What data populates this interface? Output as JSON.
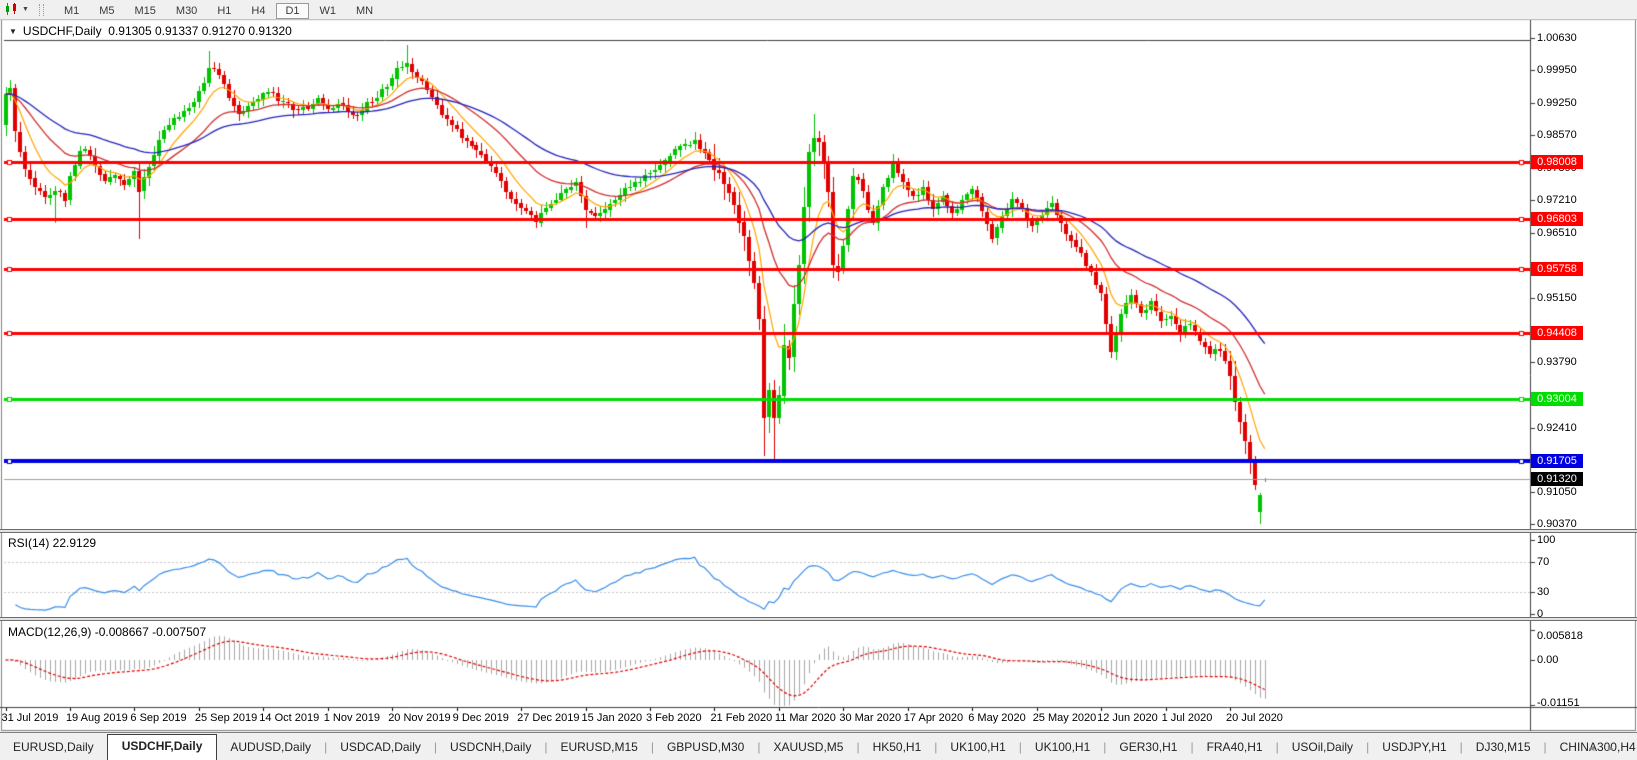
{
  "toolbar": {
    "timeframe_buttons": [
      "M1",
      "M5",
      "M15",
      "M30",
      "H1",
      "H4",
      "D1",
      "W1",
      "MN"
    ],
    "active_timeframe": "D1"
  },
  "chart": {
    "title": {
      "symbol": "USDCHF,Daily",
      "ohlc": "0.91305 0.91337 0.91270 0.91320"
    }
  },
  "rsi": {
    "label": "RSI(14) 22.9129",
    "axis_labels": [
      "100",
      "70",
      "30",
      "0"
    ],
    "axis_values": [
      100,
      70,
      30,
      0
    ],
    "level_lines": [
      70,
      30
    ],
    "line_color": "#3B8FE8"
  },
  "macd": {
    "label": "MACD(12,26,9) -0.008667 -0.007507",
    "axis_labels": [
      "0.005818",
      "0.00",
      "-0.01151"
    ],
    "histogram_color": "#A8A8A8",
    "signal_color": "#E00000"
  },
  "tab_bar": {
    "scroll_left_icon": "◄",
    "scroll_right_icon": "►",
    "tabs": [
      {
        "label": "EURUSD,Daily",
        "active": false
      },
      {
        "label": "USDCHF,Daily",
        "active": true
      },
      {
        "label": "AUDUSD,Daily",
        "active": false
      },
      {
        "label": "USDCAD,Daily",
        "active": false
      },
      {
        "label": "USDCNH,Daily",
        "active": false
      },
      {
        "label": "EURUSD,M15",
        "active": false
      },
      {
        "label": "GBPUSD,M30",
        "active": false
      },
      {
        "label": "XAUUSD,M5",
        "active": false
      },
      {
        "label": "HK50,H1",
        "active": false
      },
      {
        "label": "UK100,H1",
        "active": false
      },
      {
        "label": "UK100,H1",
        "active": false
      },
      {
        "label": "GER30,H1",
        "active": false
      },
      {
        "label": "FRA40,H1",
        "active": false
      },
      {
        "label": "USOil,Daily",
        "active": false
      },
      {
        "label": "USDJPY,H1",
        "active": false
      },
      {
        "label": "DJ30,M15",
        "active": false
      },
      {
        "label": "CHINA300,H4",
        "active": false
      }
    ]
  },
  "chart_data": {
    "type": "candlestick",
    "symbol": "USDCHF",
    "timeframe": "Daily",
    "ohlc_current": {
      "open": 0.91305,
      "high": 0.91337,
      "low": 0.9127,
      "close": 0.9132
    },
    "num_candles": 255,
    "candles_per_date_tick": 13,
    "colors": {
      "up": "#00C400",
      "down": "#E00000",
      "current_price_line": "#A0A0A0"
    },
    "moving_averages": [
      {
        "name": "fast",
        "period": 8,
        "color": "#FFA500",
        "width": 1.2
      },
      {
        "name": "medium",
        "period": 21,
        "color": "#D03030",
        "width": 1.3
      },
      {
        "name": "slow",
        "period": 44,
        "color": "#2424BB",
        "width": 1.3
      }
    ],
    "horizontal_lines": [
      {
        "label": "0.98008",
        "price": 0.98008,
        "color": "#FF0000",
        "width": 3
      },
      {
        "label": "0.96803",
        "price": 0.96803,
        "color": "#FF0000",
        "width": 3
      },
      {
        "label": "0.95758",
        "price": 0.95758,
        "color": "#FF0000",
        "width": 3
      },
      {
        "label": "0.94408",
        "price": 0.94408,
        "color": "#FF0000",
        "width": 3
      },
      {
        "label": "0.93004",
        "price": 0.93004,
        "color": "#00DD00",
        "width": 3
      },
      {
        "label": "0.91705",
        "price": 0.91705,
        "color": "#0000E0",
        "width": 4
      }
    ],
    "current_price": {
      "label": "0.91320",
      "price": 0.9132
    },
    "price_axis_ticks": [
      {
        "label": "1.00630",
        "price": 1.0063
      },
      {
        "label": "0.99950",
        "price": 0.9995
      },
      {
        "label": "0.99250",
        "price": 0.9925
      },
      {
        "label": "0.98570",
        "price": 0.9857
      },
      {
        "label": "0.97890",
        "price": 0.9789
      },
      {
        "label": "0.97210",
        "price": 0.9721
      },
      {
        "label": "0.96510",
        "price": 0.9651
      },
      {
        "label": "0.95150",
        "price": 0.9515
      },
      {
        "label": "0.93790",
        "price": 0.9379
      },
      {
        "label": "0.92410",
        "price": 0.9241
      },
      {
        "label": "0.91050",
        "price": 0.9105
      },
      {
        "label": "0.90370",
        "price": 0.9037
      }
    ],
    "date_ticks": [
      "31 Jul 2019",
      "19 Aug 2019",
      "6 Sep 2019",
      "25 Sep 2019",
      "14 Oct 2019",
      "1 Nov 2019",
      "20 Nov 2019",
      "9 Dec 2019",
      "27 Dec 2019",
      "15 Jan 2020",
      "3 Feb 2020",
      "21 Feb 2020",
      "11 Mar 2020",
      "30 Mar 2020",
      "17 Apr 2020",
      "6 May 2020",
      "25 May 2020",
      "12 Jun 2020",
      "1 Jul 2020",
      "20 Jul 2020"
    ],
    "close_anchors": [
      [
        0,
        0.994
      ],
      [
        1,
        0.9952
      ],
      [
        2,
        0.987
      ],
      [
        3,
        0.982
      ],
      [
        4,
        0.9788
      ],
      [
        6,
        0.9752
      ],
      [
        8,
        0.9726
      ],
      [
        10,
        0.9742
      ],
      [
        12,
        0.9722
      ],
      [
        13,
        0.9768
      ],
      [
        15,
        0.9822
      ],
      [
        16,
        0.983
      ],
      [
        18,
        0.9788
      ],
      [
        20,
        0.9758
      ],
      [
        22,
        0.9772
      ],
      [
        24,
        0.9752
      ],
      [
        26,
        0.9788
      ],
      [
        27,
        0.9742
      ],
      [
        28,
        0.9772
      ],
      [
        30,
        0.982
      ],
      [
        32,
        0.9868
      ],
      [
        34,
        0.9892
      ],
      [
        36,
        0.9906
      ],
      [
        38,
        0.9926
      ],
      [
        40,
        0.9972
      ],
      [
        41,
        0.9998
      ],
      [
        43,
        0.9988
      ],
      [
        45,
        0.994
      ],
      [
        47,
        0.9902
      ],
      [
        49,
        0.9918
      ],
      [
        51,
        0.9936
      ],
      [
        53,
        0.9952
      ],
      [
        55,
        0.9932
      ],
      [
        57,
        0.9922
      ],
      [
        59,
        0.9904
      ],
      [
        61,
        0.9918
      ],
      [
        63,
        0.9936
      ],
      [
        65,
        0.9908
      ],
      [
        67,
        0.9924
      ],
      [
        69,
        0.9908
      ],
      [
        71,
        0.9898
      ],
      [
        73,
        0.9922
      ],
      [
        75,
        0.994
      ],
      [
        77,
        0.9962
      ],
      [
        79,
        0.9996
      ],
      [
        81,
        1.0006
      ],
      [
        83,
        0.9982
      ],
      [
        85,
        0.995
      ],
      [
        87,
        0.992
      ],
      [
        89,
        0.9892
      ],
      [
        91,
        0.9868
      ],
      [
        93,
        0.9846
      ],
      [
        95,
        0.9824
      ],
      [
        97,
        0.9808
      ],
      [
        99,
        0.9778
      ],
      [
        101,
        0.9742
      ],
      [
        103,
        0.9712
      ],
      [
        105,
        0.9692
      ],
      [
        107,
        0.9678
      ],
      [
        109,
        0.9704
      ],
      [
        111,
        0.9722
      ],
      [
        113,
        0.9742
      ],
      [
        115,
        0.9756
      ],
      [
        117,
        0.97
      ],
      [
        119,
        0.9686
      ],
      [
        121,
        0.9706
      ],
      [
        123,
        0.9722
      ],
      [
        125,
        0.9742
      ],
      [
        127,
        0.9756
      ],
      [
        129,
        0.9772
      ],
      [
        131,
        0.9788
      ],
      [
        133,
        0.9806
      ],
      [
        135,
        0.9824
      ],
      [
        137,
        0.9838
      ],
      [
        139,
        0.9844
      ],
      [
        141,
        0.9818
      ],
      [
        143,
        0.9786
      ],
      [
        145,
        0.9756
      ],
      [
        147,
        0.97
      ],
      [
        149,
        0.964
      ],
      [
        151,
        0.9556
      ],
      [
        152,
        0.947
      ],
      [
        153,
        0.927
      ],
      [
        154,
        0.933
      ],
      [
        155,
        0.9252
      ],
      [
        156,
        0.9312
      ],
      [
        157,
        0.9424
      ],
      [
        158,
        0.9388
      ],
      [
        159,
        0.9512
      ],
      [
        160,
        0.9582
      ],
      [
        161,
        0.9702
      ],
      [
        162,
        0.9822
      ],
      [
        163,
        0.9858
      ],
      [
        164,
        0.9838
      ],
      [
        165,
        0.9792
      ],
      [
        166,
        0.9726
      ],
      [
        167,
        0.9592
      ],
      [
        168,
        0.9566
      ],
      [
        169,
        0.962
      ],
      [
        171,
        0.9776
      ],
      [
        173,
        0.9742
      ],
      [
        175,
        0.9668
      ],
      [
        177,
        0.9744
      ],
      [
        179,
        0.9796
      ],
      [
        181,
        0.9762
      ],
      [
        183,
        0.9724
      ],
      [
        185,
        0.9748
      ],
      [
        187,
        0.9702
      ],
      [
        189,
        0.973
      ],
      [
        191,
        0.9688
      ],
      [
        193,
        0.9716
      ],
      [
        195,
        0.9744
      ],
      [
        197,
        0.9702
      ],
      [
        199,
        0.9644
      ],
      [
        201,
        0.9692
      ],
      [
        203,
        0.9722
      ],
      [
        205,
        0.97
      ],
      [
        207,
        0.9662
      ],
      [
        209,
        0.9688
      ],
      [
        211,
        0.9712
      ],
      [
        213,
        0.9672
      ],
      [
        215,
        0.9636
      ],
      [
        217,
        0.9604
      ],
      [
        219,
        0.9564
      ],
      [
        221,
        0.9524
      ],
      [
        223,
        0.9398
      ],
      [
        225,
        0.9482
      ],
      [
        227,
        0.9516
      ],
      [
        229,
        0.9478
      ],
      [
        231,
        0.9502
      ],
      [
        233,
        0.9462
      ],
      [
        235,
        0.9478
      ],
      [
        237,
        0.9442
      ],
      [
        239,
        0.9462
      ],
      [
        241,
        0.9424
      ],
      [
        243,
        0.9396
      ],
      [
        245,
        0.9406
      ],
      [
        247,
        0.9348
      ],
      [
        248,
        0.9298
      ],
      [
        249,
        0.9252
      ],
      [
        250,
        0.9214
      ],
      [
        251,
        0.9164
      ],
      [
        252,
        0.9118
      ],
      [
        253,
        0.9098
      ],
      [
        254,
        0.9132
      ]
    ],
    "candle_overrides": {
      "10": {
        "l": 0.9672
      },
      "27": {
        "l": 0.9638
      },
      "41": {
        "h": 1.0035
      },
      "81": {
        "h": 1.0048
      },
      "117": {
        "l": 0.9662
      },
      "153": {
        "l": 0.9182
      },
      "155": {
        "l": 0.91708
      },
      "163": {
        "h": 0.9901
      },
      "253": {
        "o": 0.9062,
        "h": 0.9104,
        "l": 0.9037,
        "c": 0.9098
      },
      "254": {
        "o": 0.91305,
        "h": 0.91337,
        "l": 0.9127,
        "c": 0.9132
      }
    },
    "indicators": [
      {
        "name": "RSI",
        "period": 14,
        "current": 22.9129
      },
      {
        "name": "MACD",
        "fast": 12,
        "slow": 26,
        "signal": 9,
        "current_macd": -0.008667,
        "current_signal": -0.007507,
        "axis_max": 0.005818,
        "axis_min": -0.01151
      }
    ]
  }
}
